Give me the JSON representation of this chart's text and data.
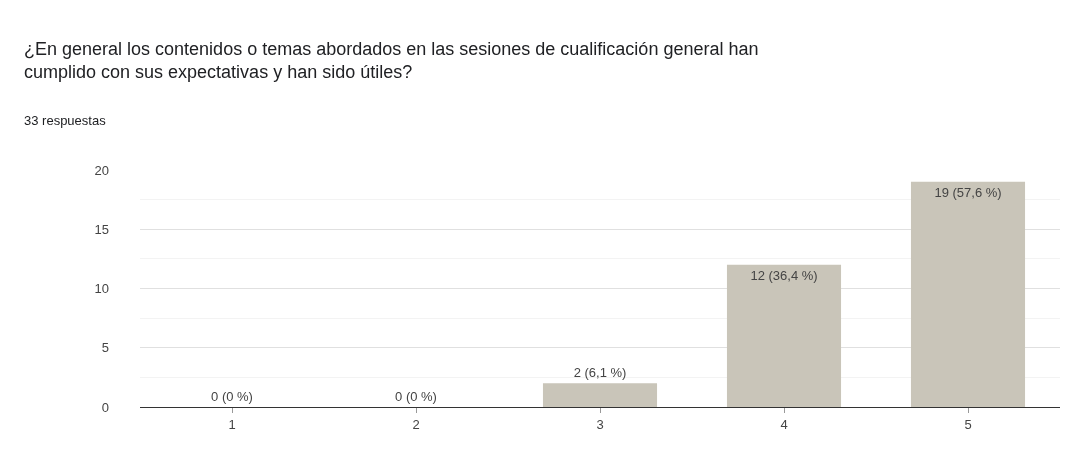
{
  "chart_data": {
    "type": "bar",
    "title": "¿En general los contenidos o temas abordados en las sesiones de cualificación general han cumplido con sus expectativas y han sido útiles?",
    "subtitle": "33 respuestas",
    "categories": [
      "1",
      "2",
      "3",
      "4",
      "5"
    ],
    "values": [
      0,
      0,
      2,
      12,
      19
    ],
    "value_labels": [
      "0 (0 %)",
      "0 (0 %)",
      "2 (6,1 %)",
      "12 (36,4 %)",
      "19 (57,6 %)"
    ],
    "color": "#c9c5b9",
    "ylim": [
      0,
      20
    ],
    "yticks": [
      0,
      5,
      10,
      15,
      20
    ],
    "grid": "y",
    "legend": false
  }
}
